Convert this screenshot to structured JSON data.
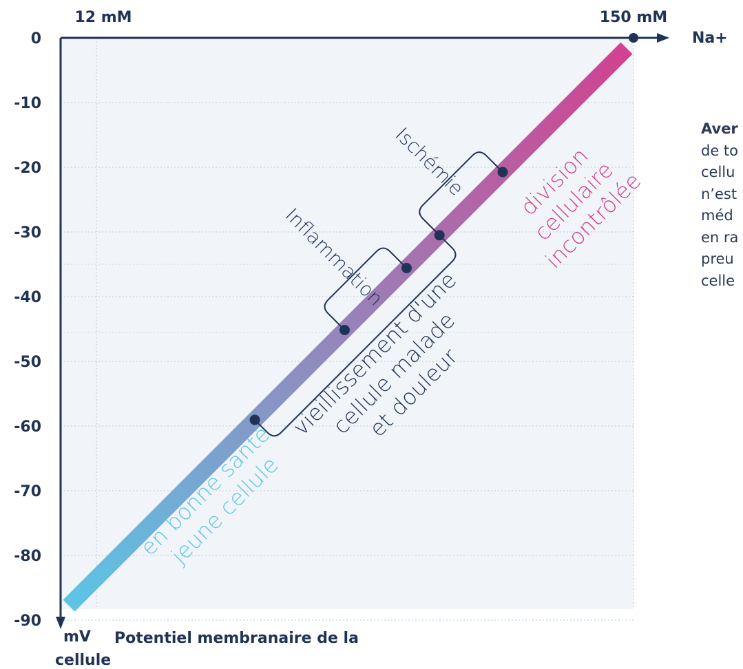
{
  "chart_data": {
    "type": "line",
    "top_axis": {
      "unit_label": "Na+",
      "start_label": "12 mM",
      "end_label": "150 mM"
    },
    "y_axis": {
      "unit": "mV",
      "label": "Potentiel membranaire de la cellule",
      "ticks": [
        0,
        -10,
        -20,
        -30,
        -40,
        -50,
        -60,
        -70,
        -80,
        -90
      ],
      "ylim": [
        -90,
        0
      ]
    },
    "gradient_colors": {
      "start": "#5bc6e6",
      "end": "#d3408e"
    },
    "band": {
      "from_mv": -90,
      "to_mv": 0
    },
    "points": [
      -60,
      -45.5,
      -35.5,
      -30.2,
      -20
    ],
    "state_labels": [
      {
        "lines": [
          "en bonne santé",
          "jeune cellule"
        ],
        "color": "#5bc6e6"
      },
      {
        "lines": [
          "vieillissement d'une",
          "cellule malade",
          "et douleur"
        ],
        "color": "#1f3354"
      },
      {
        "lines": [
          "division",
          "cellulaire",
          "incontrôlée"
        ],
        "color": "#d3408e"
      }
    ],
    "bracket_labels": [
      {
        "text": "Inflammation",
        "from_mv": -45.5,
        "to_mv": -35.5
      },
      {
        "text": "Ischémie",
        "from_mv": -30.2,
        "to_mv": -20
      }
    ],
    "aging_range": {
      "from_mv": -60,
      "to_mv": -30.2
    },
    "grid": true
  },
  "side_note": {
    "lead": "Aver",
    "lines": [
      "de to",
      "cellu",
      "n’est",
      "méd",
      "en ra",
      "preu",
      "celle"
    ]
  }
}
